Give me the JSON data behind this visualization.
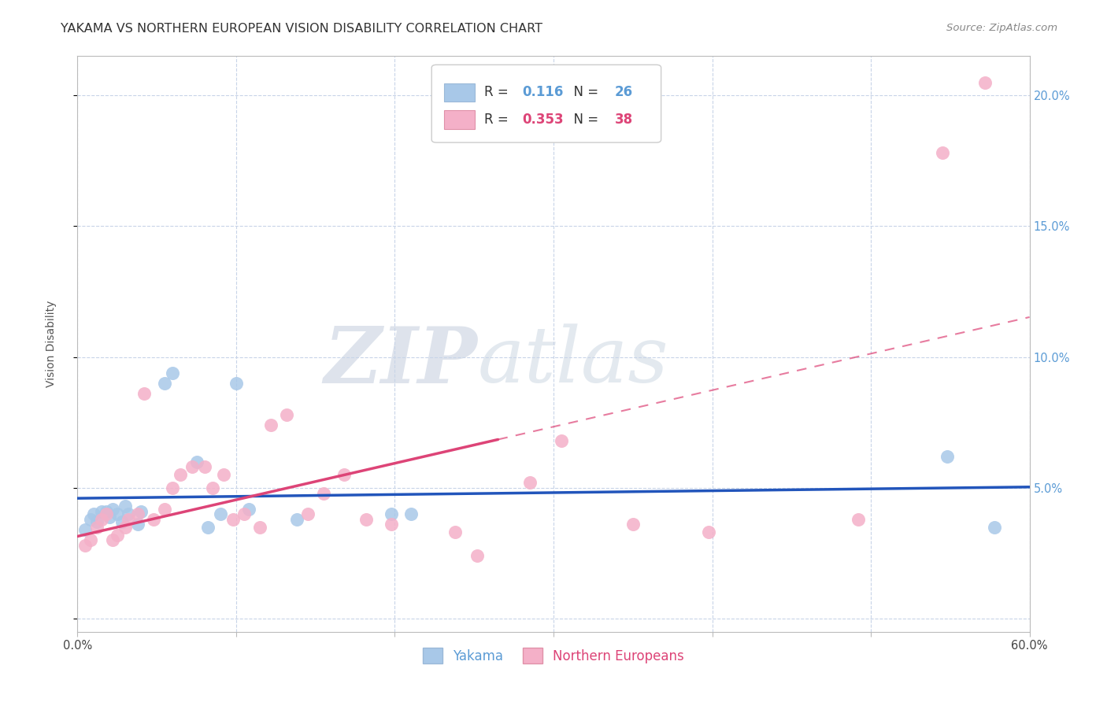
{
  "title": "YAKAMA VS NORTHERN EUROPEAN VISION DISABILITY CORRELATION CHART",
  "source": "Source: ZipAtlas.com",
  "ylabel": "Vision Disability",
  "xlim": [
    0.0,
    0.6
  ],
  "ylim": [
    -0.005,
    0.215
  ],
  "xticks": [
    0.0,
    0.1,
    0.2,
    0.3,
    0.4,
    0.5,
    0.6
  ],
  "xticklabels": [
    "0.0%",
    "",
    "",
    "",
    "",
    "",
    "60.0%"
  ],
  "yticks": [
    0.0,
    0.05,
    0.1,
    0.15,
    0.2
  ],
  "yticklabels": [
    "",
    "5.0%",
    "10.0%",
    "15.0%",
    "20.0%"
  ],
  "r_yakama": "0.116",
  "n_yakama": "26",
  "r_northern": "0.353",
  "n_northern": "38",
  "legend_labels": [
    "Yakama",
    "Northern Europeans"
  ],
  "yakama_color": "#a8c8e8",
  "northern_color": "#f4b0c8",
  "yakama_line_color": "#2255bb",
  "northern_line_color": "#dd4477",
  "watermark_zip": "ZIP",
  "watermark_atlas": "atlas",
  "title_fontsize": 11.5,
  "axis_label_fontsize": 10,
  "tick_fontsize": 10.5,
  "legend_fontsize": 12,
  "yakama_x": [
    0.005,
    0.008,
    0.01,
    0.012,
    0.015,
    0.018,
    0.02,
    0.022,
    0.025,
    0.028,
    0.03,
    0.032,
    0.038,
    0.04,
    0.055,
    0.06,
    0.075,
    0.082,
    0.09,
    0.1,
    0.108,
    0.138,
    0.198,
    0.21,
    0.548,
    0.578
  ],
  "yakama_y": [
    0.034,
    0.038,
    0.04,
    0.037,
    0.041,
    0.041,
    0.039,
    0.042,
    0.04,
    0.037,
    0.043,
    0.04,
    0.036,
    0.041,
    0.09,
    0.094,
    0.06,
    0.035,
    0.04,
    0.09,
    0.042,
    0.038,
    0.04,
    0.04,
    0.062,
    0.035
  ],
  "northern_x": [
    0.005,
    0.008,
    0.012,
    0.015,
    0.018,
    0.022,
    0.025,
    0.03,
    0.032,
    0.038,
    0.042,
    0.048,
    0.055,
    0.06,
    0.065,
    0.072,
    0.08,
    0.085,
    0.092,
    0.098,
    0.105,
    0.115,
    0.122,
    0.132,
    0.145,
    0.155,
    0.168,
    0.182,
    0.198,
    0.238,
    0.252,
    0.285,
    0.305,
    0.35,
    0.398,
    0.492,
    0.545,
    0.572
  ],
  "northern_y": [
    0.028,
    0.03,
    0.035,
    0.038,
    0.04,
    0.03,
    0.032,
    0.035,
    0.038,
    0.04,
    0.086,
    0.038,
    0.042,
    0.05,
    0.055,
    0.058,
    0.058,
    0.05,
    0.055,
    0.038,
    0.04,
    0.035,
    0.074,
    0.078,
    0.04,
    0.048,
    0.055,
    0.038,
    0.036,
    0.033,
    0.024,
    0.052,
    0.068,
    0.036,
    0.033,
    0.038,
    0.178,
    0.205
  ],
  "trend_solid_end": 0.265,
  "trend_x_start": 0.0,
  "trend_x_end": 0.6,
  "northern_line_start_y": 0.03,
  "northern_line_solid_y": 0.082,
  "northern_line_end_y": 0.135,
  "yakama_line_start_y": 0.035,
  "yakama_line_end_y": 0.052
}
